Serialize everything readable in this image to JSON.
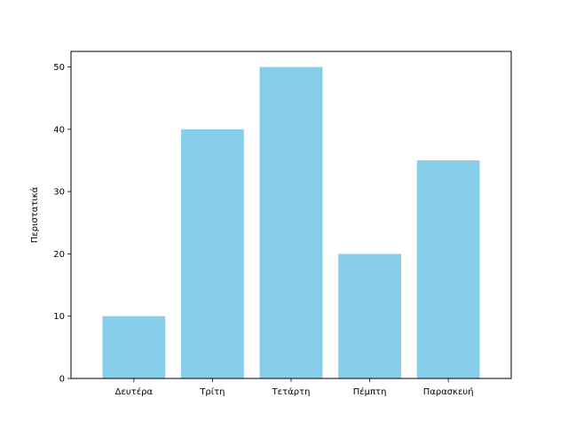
{
  "chart_data": {
    "type": "bar",
    "categories": [
      "Δευτέρα",
      "Τρίτη",
      "Τετάρτη",
      "Πέμπτη",
      "Παρασκευή"
    ],
    "values": [
      10,
      40,
      50,
      20,
      35
    ],
    "title": "",
    "xlabel": "",
    "ylabel": "Περιστατικά",
    "ylim": [
      0,
      52.5
    ],
    "yticks": [
      0,
      10,
      20,
      30,
      40,
      50
    ],
    "bar_color": "#87ceeb",
    "grid": false,
    "legend": "none"
  }
}
